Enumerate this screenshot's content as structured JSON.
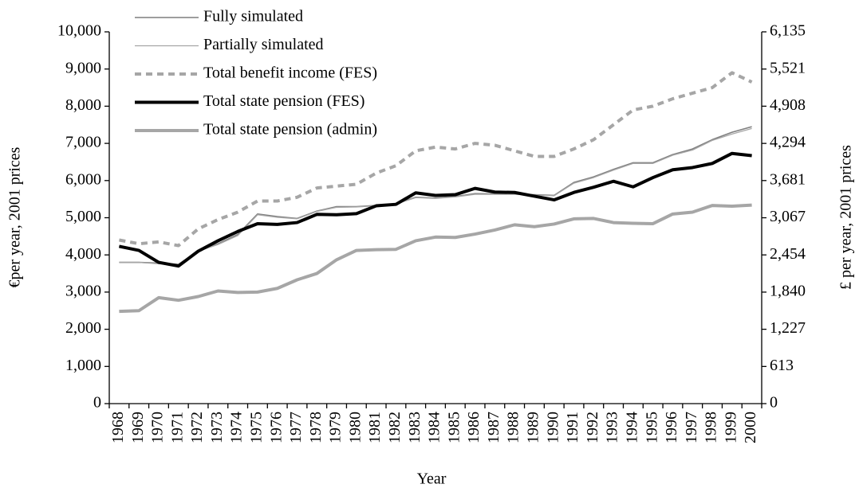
{
  "chart_data": {
    "type": "line",
    "x_label": "Year",
    "y_label": "€per year, 2001 prices",
    "y2_label": "£ per year, 2001 prices",
    "categories": [
      "1968",
      "1969",
      "1970",
      "1971",
      "1972",
      "1973",
      "1974",
      "1975",
      "1976",
      "1977",
      "1978",
      "1979",
      "1980",
      "1981",
      "1982",
      "1983",
      "1984",
      "1985",
      "1986",
      "1987",
      "1988",
      "1989",
      "1990",
      "1991",
      "1992",
      "1993",
      "1994",
      "1995",
      "1996",
      "1997",
      "1998",
      "1999",
      "2000"
    ],
    "ylim": [
      0,
      10000
    ],
    "yticks": [
      0,
      {
        "value": 1000,
        "label": "1,000"
      },
      {
        "value": 2000,
        "label": "2,000"
      },
      {
        "value": 3000,
        "label": "3,000"
      },
      {
        "value": 4000,
        "label": "4,000"
      },
      {
        "value": 5000,
        "label": "5,000"
      },
      {
        "value": 6000,
        "label": "6,000"
      },
      {
        "value": 7000,
        "label": "7,000"
      },
      {
        "value": 8000,
        "label": "8,000"
      },
      {
        "value": 9000,
        "label": "9,000"
      },
      {
        "value": 10000,
        "label": "10,000"
      }
    ],
    "y2lim": [
      0,
      6135
    ],
    "y2ticks": [
      0,
      613,
      {
        "value": 1227,
        "label": "1,227"
      },
      {
        "value": 1840,
        "label": "1,840"
      },
      {
        "value": 2454,
        "label": "2,454"
      },
      {
        "value": 3067,
        "label": "3,067"
      },
      {
        "value": 3681,
        "label": "3,681"
      },
      {
        "value": 4294,
        "label": "4,294"
      },
      {
        "value": 4908,
        "label": "4,908"
      },
      {
        "value": 5521,
        "label": "5,521"
      },
      {
        "value": 6135,
        "label": "6,135"
      }
    ],
    "legend": "top-left",
    "series": [
      {
        "name": "Fully simulated",
        "color": "#7f7f7f",
        "values": [
          3800,
          3800,
          3780,
          3750,
          4100,
          4300,
          4550,
          5100,
          5030,
          4980,
          5180,
          5300,
          5300,
          5330,
          5380,
          5550,
          5530,
          5570,
          5650,
          5640,
          5640,
          5620,
          5600,
          5950,
          6100,
          6300,
          6480,
          6480,
          6700,
          6850,
          7100,
          7300,
          7450
        ]
      },
      {
        "name": "Partially simulated",
        "color": "#a6a6a6",
        "values": [
          3800,
          3800,
          3760,
          3740,
          4100,
          4280,
          4520,
          5080,
          5010,
          4970,
          5170,
          5280,
          5290,
          5320,
          5370,
          5540,
          5520,
          5560,
          5630,
          5630,
          5630,
          5610,
          5590,
          5930,
          6080,
          6280,
          6460,
          6460,
          6680,
          6820,
          7080,
          7250,
          7400
        ]
      },
      {
        "name": "Total benefit income (FES)",
        "color": "#a6a6a6",
        "dashed": true,
        "values": [
          4400,
          4300,
          4350,
          4250,
          4700,
          4950,
          5150,
          5450,
          5450,
          5550,
          5800,
          5850,
          5900,
          6200,
          6400,
          6800,
          6900,
          6850,
          7000,
          6950,
          6800,
          6650,
          6650,
          6850,
          7100,
          7500,
          7900,
          8000,
          8200,
          8350,
          8500,
          8900,
          8650
        ]
      },
      {
        "name": "Total state pension (FES)",
        "color": "#000000",
        "values": [
          4230,
          4120,
          3800,
          3700,
          4100,
          4380,
          4630,
          4840,
          4820,
          4870,
          5090,
          5080,
          5110,
          5320,
          5360,
          5670,
          5600,
          5620,
          5790,
          5690,
          5680,
          5580,
          5480,
          5680,
          5820,
          5980,
          5830,
          6080,
          6290,
          6350,
          6460,
          6730,
          6670
        ]
      },
      {
        "name": "Total state pension (admin)",
        "color": "#a6a6a6",
        "values": [
          2480,
          2500,
          2850,
          2780,
          2880,
          3030,
          2990,
          3000,
          3100,
          3330,
          3500,
          3870,
          4120,
          4140,
          4150,
          4380,
          4480,
          4470,
          4560,
          4670,
          4810,
          4760,
          4830,
          4970,
          4980,
          4870,
          4850,
          4840,
          5100,
          5150,
          5330,
          5310,
          5340
        ]
      }
    ]
  }
}
